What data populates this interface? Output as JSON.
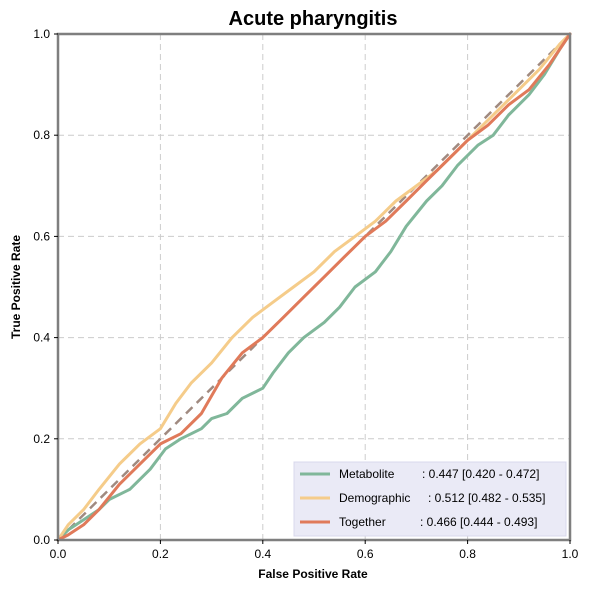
{
  "chart_data": {
    "type": "line",
    "title": "Acute pharyngitis",
    "xlabel": "False Positive Rate",
    "ylabel": "True Positive Rate",
    "xlim": [
      0,
      1
    ],
    "ylim": [
      0,
      1
    ],
    "x_ticks": [
      "0.0",
      "0.2",
      "0.4",
      "0.6",
      "0.8",
      "1.0"
    ],
    "y_ticks": [
      "0.0",
      "0.2",
      "0.4",
      "0.6",
      "0.8",
      "1.0"
    ],
    "grid": true,
    "legend_position": "bottom-right",
    "reference_line": {
      "x": [
        0,
        1
      ],
      "y": [
        0,
        1
      ],
      "color": "#a08a80",
      "style": "dashed"
    },
    "series": [
      {
        "name": "Metabolite",
        "auc_label": ": 0.447 [0.420 - 0.472]",
        "color": "#80b79a",
        "x": [
          0,
          0.02,
          0.05,
          0.08,
          0.1,
          0.14,
          0.18,
          0.21,
          0.24,
          0.28,
          0.3,
          0.33,
          0.36,
          0.4,
          0.42,
          0.45,
          0.48,
          0.52,
          0.55,
          0.58,
          0.62,
          0.65,
          0.68,
          0.72,
          0.75,
          0.78,
          0.82,
          0.85,
          0.88,
          0.92,
          0.95,
          0.98,
          1.0
        ],
        "y": [
          0,
          0.02,
          0.04,
          0.06,
          0.08,
          0.1,
          0.14,
          0.18,
          0.2,
          0.22,
          0.24,
          0.25,
          0.28,
          0.3,
          0.33,
          0.37,
          0.4,
          0.43,
          0.46,
          0.5,
          0.53,
          0.57,
          0.62,
          0.67,
          0.7,
          0.74,
          0.78,
          0.8,
          0.84,
          0.88,
          0.92,
          0.97,
          1.0
        ]
      },
      {
        "name": "Demographic",
        "auc_label": ": 0.512 [0.482 - 0.535]",
        "color": "#f5cc8a",
        "x": [
          0,
          0.02,
          0.05,
          0.08,
          0.12,
          0.16,
          0.2,
          0.23,
          0.26,
          0.3,
          0.34,
          0.38,
          0.42,
          0.46,
          0.5,
          0.54,
          0.58,
          0.62,
          0.66,
          0.7,
          0.74,
          0.78,
          0.82,
          0.86,
          0.9,
          0.94,
          0.98,
          1.0
        ],
        "y": [
          0,
          0.03,
          0.06,
          0.1,
          0.15,
          0.19,
          0.22,
          0.27,
          0.31,
          0.35,
          0.4,
          0.44,
          0.47,
          0.5,
          0.53,
          0.57,
          0.6,
          0.63,
          0.67,
          0.7,
          0.73,
          0.77,
          0.81,
          0.85,
          0.89,
          0.93,
          0.98,
          1.0
        ]
      },
      {
        "name": "Together",
        "auc_label": ": 0.466 [0.444 - 0.493]",
        "color": "#e07a5a",
        "x": [
          0,
          0.02,
          0.05,
          0.08,
          0.12,
          0.16,
          0.2,
          0.24,
          0.28,
          0.32,
          0.36,
          0.4,
          0.44,
          0.48,
          0.52,
          0.56,
          0.6,
          0.64,
          0.68,
          0.72,
          0.76,
          0.8,
          0.84,
          0.88,
          0.92,
          0.96,
          1.0
        ],
        "y": [
          0,
          0.01,
          0.03,
          0.06,
          0.11,
          0.15,
          0.19,
          0.21,
          0.25,
          0.32,
          0.37,
          0.4,
          0.44,
          0.48,
          0.52,
          0.56,
          0.6,
          0.63,
          0.67,
          0.71,
          0.75,
          0.79,
          0.82,
          0.86,
          0.89,
          0.94,
          1.0
        ]
      }
    ]
  }
}
